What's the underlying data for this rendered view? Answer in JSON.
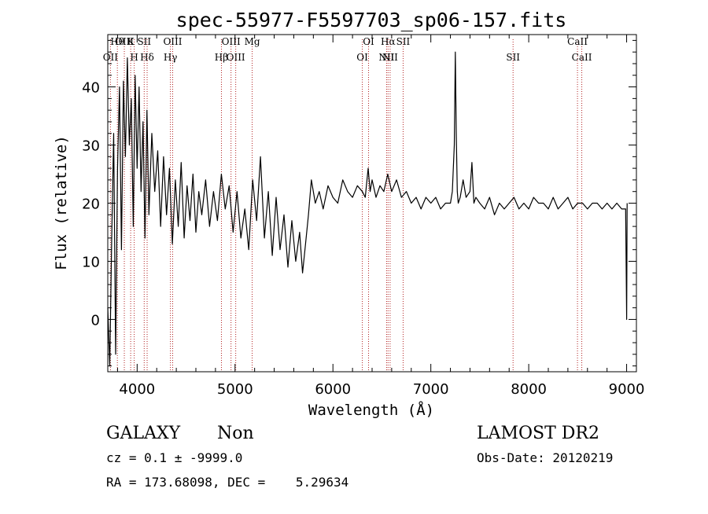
{
  "chart_data": {
    "type": "line",
    "title": "spec-55977-F5597703_sp06-157.fits",
    "xlabel": "Wavelength (Å)",
    "ylabel": "Flux (relative)",
    "xlim": [
      3700,
      9100
    ],
    "ylim": [
      -9,
      49
    ],
    "xticks": [
      4000,
      5000,
      6000,
      7000,
      8000,
      9000
    ],
    "yticks": [
      0,
      10,
      20,
      30,
      40
    ],
    "grid": false,
    "series": [
      {
        "color": "#000000",
        "x": [
          3700,
          3720,
          3740,
          3760,
          3780,
          3800,
          3820,
          3840,
          3860,
          3880,
          3900,
          3920,
          3940,
          3960,
          3980,
          4000,
          4020,
          4040,
          4060,
          4080,
          4100,
          4120,
          4150,
          4180,
          4210,
          4240,
          4270,
          4300,
          4330,
          4360,
          4390,
          4420,
          4450,
          4480,
          4510,
          4540,
          4570,
          4600,
          4630,
          4660,
          4700,
          4740,
          4780,
          4820,
          4860,
          4900,
          4940,
          4980,
          5020,
          5060,
          5100,
          5140,
          5180,
          5220,
          5260,
          5300,
          5340,
          5380,
          5420,
          5460,
          5500,
          5540,
          5580,
          5620,
          5660,
          5690,
          5720,
          5750,
          5780,
          5820,
          5860,
          5900,
          5950,
          6000,
          6050,
          6100,
          6150,
          6200,
          6250,
          6300,
          6330,
          6360,
          6380,
          6400,
          6440,
          6480,
          6520,
          6560,
          6600,
          6650,
          6700,
          6750,
          6800,
          6850,
          6900,
          6950,
          7000,
          7050,
          7100,
          7150,
          7200,
          7220,
          7240,
          7250,
          7260,
          7270,
          7280,
          7300,
          7330,
          7360,
          7400,
          7420,
          7440,
          7460,
          7500,
          7550,
          7600,
          7650,
          7700,
          7750,
          7800,
          7850,
          7900,
          7950,
          8000,
          8050,
          8100,
          8150,
          8200,
          8250,
          8300,
          8350,
          8400,
          8450,
          8500,
          8550,
          8600,
          8650,
          8700,
          8750,
          8800,
          8850,
          8900,
          8950,
          8990,
          9000,
          9005
        ],
        "y": [
          2,
          -8,
          14,
          32,
          -6,
          26,
          40,
          12,
          41,
          28,
          45,
          30,
          38,
          16,
          42,
          26,
          40,
          22,
          34,
          14,
          36,
          18,
          32,
          22,
          29,
          16,
          28,
          18,
          26,
          13,
          24,
          16,
          27,
          14,
          23,
          17,
          25,
          15,
          22,
          18,
          24,
          16,
          22,
          17,
          25,
          19,
          23,
          15,
          22,
          14,
          19,
          12,
          24,
          17,
          28,
          14,
          22,
          11,
          21,
          12,
          18,
          9,
          17,
          10,
          15,
          8,
          13,
          18,
          24,
          20,
          22,
          19,
          23,
          21,
          20,
          24,
          22,
          21,
          23,
          22,
          21,
          26,
          22,
          24,
          21,
          23,
          22,
          25,
          22,
          24,
          21,
          22,
          20,
          21,
          19,
          21,
          20,
          21,
          19,
          20,
          20,
          22,
          30,
          46,
          32,
          22,
          20,
          21,
          24,
          21,
          22,
          27,
          20,
          21,
          20,
          19,
          21,
          18,
          20,
          19,
          20,
          21,
          19,
          20,
          19,
          21,
          20,
          20,
          19,
          21,
          19,
          20,
          21,
          19,
          20,
          20,
          19,
          20,
          20,
          19,
          20,
          19,
          20,
          19,
          19,
          0,
          20
        ]
      }
    ],
    "line_markers": [
      {
        "labels": [
          "Hθ"
        ],
        "x": 3798
      },
      {
        "labels": [
          "OII"
        ],
        "x": 3727
      },
      {
        "labels": [
          "OIII"
        ],
        "x": 3869
      },
      {
        "labels": [
          "H"
        ],
        "x": 3970
      },
      {
        "labels": [
          "K"
        ],
        "x": 3934
      },
      {
        "labels": [
          "Hδ"
        ],
        "x": 4102
      },
      {
        "labels": [
          "SII"
        ],
        "x": 4072
      },
      {
        "labels": [
          "Hγ"
        ],
        "x": 4340
      },
      {
        "labels": [
          "OIII"
        ],
        "x": 4363
      },
      {
        "labels": [
          "Hβ"
        ],
        "x": 4861
      },
      {
        "labels": [
          "OIII"
        ],
        "x": 4959
      },
      {
        "labels": [
          "OIII"
        ],
        "x": 5007
      },
      {
        "labels": [
          "Mg"
        ],
        "x": 5175
      },
      {
        "labels": [
          "OI"
        ],
        "x": 6300
      },
      {
        "labels": [
          "OI"
        ],
        "x": 6364
      },
      {
        "labels": [
          "NII"
        ],
        "x": 6548
      },
      {
        "labels": [
          "Hα"
        ],
        "x": 6563
      },
      {
        "labels": [
          "NII"
        ],
        "x": 6584
      },
      {
        "labels": [
          "SII"
        ],
        "x": 6717
      },
      {
        "labels": [
          "SII"
        ],
        "x": 7840
      },
      {
        "labels": [
          "CaII"
        ],
        "x": 8498
      },
      {
        "labels": [
          "CaII"
        ],
        "x": 8542
      }
    ],
    "marker_color": "#b22222"
  },
  "info": {
    "class": "GALAXY",
    "subclass": "Non",
    "survey": "LAMOST DR2",
    "cz": "cz = 0.1 ± -9999.0",
    "obs_date": "Obs-Date: 20120219",
    "radec": "RA = 173.68098, DEC =    5.29634"
  }
}
